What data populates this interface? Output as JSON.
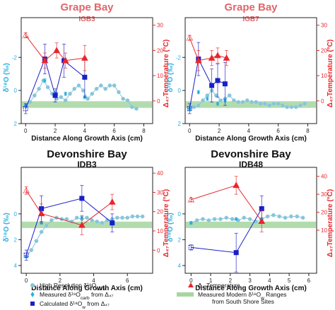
{
  "colors": {
    "red": "#e8262b",
    "hires": "#86c5da",
    "measured": "#29aee0",
    "calc": "#1a1fc8",
    "band": "#a6d6a0",
    "bandEdge": "#6cba6b",
    "grey": "#555555",
    "title_red": "#e26569"
  },
  "shared_labels": {
    "xlabel": "Distance Along Growth Axis (cm)",
    "ylabel_left": "δ¹⁸O (‰)",
    "ylabel_right": "Δ₄₇Temperature (°C)"
  },
  "chart_data": [
    {
      "type": "line",
      "title": "Grape Bay",
      "subtitle": "IGB3",
      "title_style": "red",
      "xlabel": "Distance Along Growth Axis (cm)",
      "ylabel_left": "δ¹⁸O (‰)",
      "ylabel_right": "Δ₄₇Temperature (°C)",
      "xlim": [
        -0.3,
        8.6
      ],
      "ylim_left": [
        2.0,
        -4.4
      ],
      "ylim_right": [
        -9,
        33
      ],
      "xticks": [
        "0",
        "2",
        "4",
        "6",
        "8"
      ],
      "yticks_left": [
        "-2",
        "0",
        "2"
      ],
      "yticks_right": [
        "0",
        "10",
        "20",
        "30"
      ],
      "band": [
        0.65,
        1.05
      ],
      "series": [
        {
          "name": "High Resolution δ18Ocarb",
          "kind": "hires",
          "x": [
            0.0,
            0.3,
            0.6,
            0.9,
            1.2,
            1.5,
            1.8,
            2.1,
            2.4,
            2.7,
            3.0,
            3.3,
            3.6,
            3.9,
            4.2,
            4.5,
            4.8,
            5.1,
            5.4,
            5.7,
            6.0,
            6.3,
            6.6,
            6.9,
            7.2,
            7.5
          ],
          "y": [
            0.9,
            0.7,
            0.3,
            -0.1,
            -0.6,
            -0.2,
            0.2,
            0.5,
            0.4,
            0.6,
            0.2,
            -0.1,
            -0.3,
            0.0,
            0.5,
            0.2,
            -0.1,
            -0.3,
            -0.1,
            -0.3,
            -0.3,
            0.1,
            0.5,
            0.6,
            1.0,
            1.1
          ]
        },
        {
          "name": "Measured δ18Ocarb from Δ47",
          "kind": "measured",
          "x": [
            0.0,
            1.3,
            2.1,
            2.7,
            4.0
          ],
          "y": [
            0.9,
            -0.6,
            0.2,
            0.2,
            0.4
          ],
          "err": [
            0.1,
            0.1,
            0.1,
            0.1,
            0.1
          ]
        },
        {
          "name": "Calculated δ18Ow from Δ47",
          "kind": "calc",
          "x": [
            0.0,
            1.3,
            2.0,
            2.6,
            4.0
          ],
          "y": [
            1.1,
            -1.9,
            0.3,
            -1.8,
            -0.8
          ],
          "err": [
            0.3,
            0.9,
            0.4,
            1.0,
            1.2
          ]
        },
        {
          "name": "Δ47Temperature",
          "kind": "temp",
          "x": [
            0.0,
            1.3,
            2.1,
            2.7,
            4.0
          ],
          "y": [
            26,
            16,
            20,
            16,
            17
          ],
          "err": [
            1,
            3,
            3,
            3,
            5
          ]
        }
      ]
    },
    {
      "type": "line",
      "title": "Grape Bay",
      "subtitle": "IGB7",
      "title_style": "red",
      "xlabel": "Distance Along Growth Axis (cm)",
      "ylabel_left": "δ¹⁸O (‰)",
      "ylabel_right": "Δ₄₇Temperature (°C)",
      "xlim": [
        -0.3,
        8.6
      ],
      "ylim_left": [
        2.0,
        -4.4
      ],
      "ylim_right": [
        -9,
        33
      ],
      "xticks": [
        "0",
        "2",
        "4",
        "6",
        "8"
      ],
      "yticks_left": [
        "-2",
        "0",
        "2"
      ],
      "yticks_right": [
        "0",
        "10",
        "20",
        "30"
      ],
      "band": [
        0.65,
        1.05
      ],
      "series": [
        {
          "name": "High Resolution δ18Ocarb",
          "kind": "hires",
          "x": [
            0.0,
            0.3,
            0.6,
            0.9,
            1.2,
            1.5,
            1.8,
            2.1,
            2.4,
            2.7,
            3.0,
            3.3,
            3.6,
            3.9,
            4.2,
            4.5,
            4.8,
            5.1,
            5.4,
            5.7,
            6.0,
            6.3,
            6.6,
            6.9,
            7.2,
            7.5,
            7.8
          ],
          "y": [
            1.1,
            1.0,
            0.9,
            0.6,
            0.3,
            0.0,
            0.3,
            0.6,
            0.5,
            0.3,
            0.6,
            0.7,
            0.7,
            0.6,
            0.7,
            0.7,
            0.8,
            0.8,
            0.9,
            0.8,
            0.8,
            0.9,
            1.0,
            1.0,
            1.0,
            0.9,
            0.8
          ]
        },
        {
          "name": "Measured δ18Ocarb from Δ47",
          "kind": "measured",
          "x": [
            0.0,
            0.6,
            1.2,
            1.9,
            2.4
          ],
          "y": [
            1.1,
            0.1,
            0.5,
            0.8,
            0.6
          ],
          "err": [
            0.1,
            0.1,
            0.1,
            0.1,
            0.1
          ]
        },
        {
          "name": "Calculated δ18Ow from Δ47",
          "kind": "calc",
          "x": [
            0.0,
            0.6,
            1.5,
            1.9,
            2.4
          ],
          "y": [
            1.1,
            -1.9,
            -0.3,
            -0.6,
            -0.4
          ],
          "err": [
            0.3,
            1.0,
            1.0,
            1.0,
            1.3
          ]
        },
        {
          "name": "Δ47Temperature",
          "kind": "temp",
          "x": [
            0.0,
            0.6,
            1.5,
            1.9,
            2.5
          ],
          "y": [
            25,
            16,
            17,
            18,
            17
          ],
          "err": [
            1,
            4,
            3,
            3,
            3
          ]
        }
      ]
    },
    {
      "type": "line",
      "title": "Devonshire Bay",
      "subtitle": "IDB3",
      "title_style": "black",
      "xlabel": "Distance Along Growth Axis (cm)",
      "ylabel_left": "δ¹⁸O (‰)",
      "ylabel_right": "Δ₄₇Temperature (°C)",
      "xlim": [
        -0.3,
        7.5
      ],
      "ylim_left": [
        4.6,
        -3.6
      ],
      "ylim_right": [
        -12,
        43
      ],
      "xticks": [
        "0",
        "2",
        "4",
        "6"
      ],
      "yticks_left": [
        "0",
        "2",
        "4"
      ],
      "yticks_right": [
        "0",
        "10",
        "20",
        "30",
        "40"
      ],
      "band": [
        0.6,
        1.1
      ],
      "series": [
        {
          "name": "High Resolution δ18Ocarb",
          "kind": "hires",
          "x": [
            0.0,
            0.3,
            0.6,
            0.9,
            1.2,
            1.5,
            1.8,
            2.1,
            2.4,
            2.7,
            3.0,
            3.3,
            3.6,
            3.9,
            4.2,
            4.5,
            4.8,
            5.1,
            5.4,
            5.7,
            6.0,
            6.3,
            6.6,
            6.9
          ],
          "y": [
            3.3,
            2.8,
            2.1,
            1.4,
            0.9,
            0.5,
            0.3,
            0.4,
            0.4,
            0.6,
            0.3,
            0.4,
            0.3,
            0.5,
            0.6,
            0.7,
            0.5,
            0.4,
            0.3,
            0.3,
            0.3,
            0.2,
            0.2,
            0.2
          ]
        },
        {
          "name": "Measured δ18Ocarb from Δ47",
          "kind": "measured",
          "x": [
            0.0,
            0.9,
            3.3,
            5.1
          ],
          "y": [
            3.3,
            0.7,
            0.3,
            0.6
          ],
          "err": [
            0.1,
            0.1,
            0.1,
            0.1
          ]
        },
        {
          "name": "Calculated δ18Ow from Δ47",
          "kind": "calc",
          "x": [
            0.0,
            0.9,
            3.3,
            5.1
          ],
          "y": [
            3.2,
            -0.4,
            -1.2,
            0.7
          ],
          "err": [
            0.4,
            1.0,
            1.0,
            0.7
          ]
        },
        {
          "name": "Δ47Temperature",
          "kind": "temp",
          "x": [
            0.0,
            0.9,
            3.3,
            5.1
          ],
          "y": [
            31,
            19,
            13,
            25
          ],
          "err": [
            2,
            5,
            5,
            4
          ]
        }
      ]
    },
    {
      "type": "line",
      "title": "Devonshire Bay",
      "subtitle": "IDB48",
      "title_style": "black",
      "xlabel": "Distance Along Growth Axis (cm)",
      "ylabel_left": "δ¹⁸O (‰)",
      "ylabel_right": "Δ₄₇Temperature (°C)",
      "xlim": [
        -0.3,
        6.4
      ],
      "ylim_left": [
        4.6,
        -3.6
      ],
      "ylim_right": [
        -14,
        45
      ],
      "xticks": [
        "0",
        "1",
        "2",
        "3",
        "4",
        "5",
        "6"
      ],
      "yticks_left": [
        "0",
        "2",
        "4"
      ],
      "yticks_right": [
        "10",
        "20",
        "30",
        "40"
      ],
      "band": [
        0.6,
        1.1
      ],
      "series": [
        {
          "name": "High Resolution δ18Ocarb",
          "kind": "hires",
          "x": [
            0.0,
            0.3,
            0.6,
            0.9,
            1.2,
            1.5,
            1.8,
            2.1,
            2.4,
            2.7,
            3.0,
            3.3,
            3.6,
            3.9,
            4.2,
            4.5,
            4.8,
            5.1,
            5.4,
            5.7
          ],
          "y": [
            0.7,
            0.5,
            0.4,
            0.5,
            0.4,
            0.4,
            0.3,
            0.4,
            0.5,
            0.3,
            0.4,
            0.6,
            0.4,
            0.2,
            0.1,
            0.2,
            0.3,
            0.2,
            0.2,
            0.3
          ]
        },
        {
          "name": "Measured δ18Ocarb from Δ47",
          "kind": "measured",
          "x": [
            0.0,
            2.3,
            3.6
          ],
          "y": [
            0.7,
            0.4,
            0.4
          ],
          "err": [
            0.1,
            0.1,
            0.1
          ]
        },
        {
          "name": "Calculated δ18Ow from Δ47",
          "kind": "calc",
          "x": [
            0.0,
            2.3,
            3.6
          ],
          "y": [
            2.6,
            3.0,
            -0.4
          ],
          "err": [
            0.2,
            1.5,
            1.0
          ]
        },
        {
          "name": "Δ47Temperature",
          "kind": "temp",
          "x": [
            0.0,
            2.3,
            3.6
          ],
          "y": [
            27,
            35,
            15
          ],
          "err": [
            1,
            5,
            6
          ]
        }
      ]
    }
  ],
  "legend": {
    "placement": "bottom",
    "items": [
      {
        "kind": "hires",
        "label": "High Resolution δ¹⁸O",
        "sub": "carb"
      },
      {
        "kind": "measured",
        "label": "Measured δ¹⁸O",
        "sub": "carb",
        "tail": " from Δ₄₇"
      },
      {
        "kind": "calc",
        "label": "Calculated δ¹⁸O",
        "sub": "w",
        "tail": " from Δ₄₇"
      },
      {
        "kind": "temp",
        "label": "Δ₄₇Temperature"
      },
      {
        "kind": "band",
        "label": "Measured Modern δ¹⁸O",
        "sub": "w",
        "tail": " Ranges",
        "line2": "from South Shore Sites"
      }
    ]
  }
}
